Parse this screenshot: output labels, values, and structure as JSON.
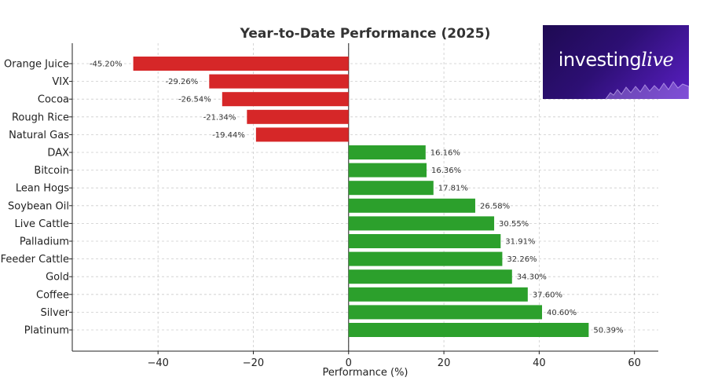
{
  "chart_data": {
    "type": "bar",
    "orientation": "horizontal",
    "title": "Year-to-Date Performance (2025)",
    "xlabel": "Performance (%)",
    "ylabel": "",
    "xlim": [
      -58,
      65
    ],
    "xticks": [
      -40,
      -20,
      0,
      20,
      40,
      60
    ],
    "xtick_labels": [
      "−40",
      "−20",
      "0",
      "20",
      "40",
      "60"
    ],
    "grid": true,
    "categories": [
      "Orange Juice",
      "VIX",
      "Cocoa",
      "Rough Rice",
      "Natural Gas",
      "DAX",
      "Bitcoin",
      "Lean Hogs",
      "Soybean Oil",
      "Live Cattle",
      "Palladium",
      "Feeder Cattle",
      "Gold",
      "Coffee",
      "Silver",
      "Platinum"
    ],
    "values": [
      -45.2,
      -29.26,
      -26.54,
      -21.34,
      -19.44,
      16.16,
      16.36,
      17.81,
      26.58,
      30.55,
      31.91,
      32.26,
      34.3,
      37.6,
      40.6,
      50.39
    ],
    "value_labels": [
      "-45.20%",
      "-29.26%",
      "-26.54%",
      "-21.34%",
      "-19.44%",
      "16.16%",
      "16.36%",
      "17.81%",
      "26.58%",
      "30.55%",
      "31.91%",
      "32.26%",
      "34.30%",
      "37.60%",
      "40.60%",
      "50.39%"
    ],
    "colors": {
      "negative": "#d62728",
      "positive": "#2ca02c"
    }
  },
  "logo": {
    "part1": "investing",
    "part2": "live"
  }
}
